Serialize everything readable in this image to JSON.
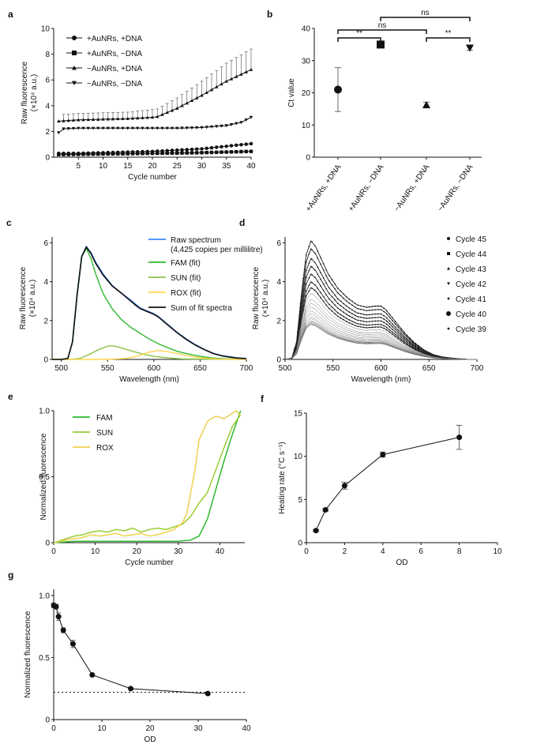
{
  "chart_data": [
    {
      "panel": "a",
      "type": "line",
      "xlabel": "Cycle number",
      "ylabel": "Raw fluorescence",
      "ylabel2": "(×10⁴ a.u.)",
      "xlim": [
        0,
        40
      ],
      "ylim": [
        0,
        10
      ],
      "xticks": [
        "5",
        "10",
        "15",
        "20",
        "25",
        "30",
        "35",
        "40"
      ],
      "yticks": [
        "0",
        "2",
        "4",
        "6",
        "8",
        "10"
      ],
      "legend_position": "top-left",
      "series": [
        {
          "name": "+AuNRs, +DNA",
          "marker": "circle",
          "x": [
            1,
            5,
            10,
            15,
            20,
            25,
            30,
            35,
            40
          ],
          "y": [
            0.3,
            0.3,
            0.35,
            0.4,
            0.45,
            0.55,
            0.65,
            0.85,
            1.05
          ]
        },
        {
          "name": "+AuNRs, −DNA",
          "marker": "square",
          "x": [
            1,
            5,
            10,
            15,
            20,
            25,
            30,
            35,
            40
          ],
          "y": [
            0.2,
            0.22,
            0.25,
            0.27,
            0.3,
            0.32,
            0.35,
            0.4,
            0.45
          ]
        },
        {
          "name": "−AuNRs, +DNA",
          "marker": "triangle-up",
          "x": [
            1,
            5,
            10,
            15,
            20,
            21,
            25,
            30,
            35,
            40
          ],
          "y": [
            2.8,
            2.9,
            2.95,
            3.0,
            3.1,
            3.15,
            3.8,
            4.8,
            5.9,
            6.8
          ],
          "err": [
            0.5,
            0.5,
            0.5,
            0.5,
            0.6,
            0.6,
            0.8,
            1.1,
            1.4,
            1.6
          ]
        },
        {
          "name": "−AuNRs, −DNA",
          "marker": "triangle-down",
          "x": [
            1,
            2,
            5,
            10,
            15,
            20,
            25,
            30,
            35,
            38,
            40
          ],
          "y": [
            1.9,
            2.2,
            2.25,
            2.25,
            2.25,
            2.25,
            2.25,
            2.3,
            2.45,
            2.7,
            3.1
          ]
        }
      ]
    },
    {
      "panel": "b",
      "type": "scatter",
      "ylabel": "Ct value",
      "ylim": [
        0,
        40
      ],
      "yticks": [
        "0",
        "10",
        "20",
        "30",
        "40"
      ],
      "categories": [
        "+AuNRs, +DNA",
        "+AuNRs, −DNA",
        "−AuNRs, +DNA",
        "−AuNRs, −DNA"
      ],
      "values": [
        21,
        35,
        16.2,
        34
      ],
      "err": [
        6.8,
        0,
        0.9,
        0.8
      ],
      "markers": [
        "circle",
        "square",
        "triangle-up",
        "triangle-down"
      ],
      "annotations": [
        {
          "text": "ns",
          "from": 0,
          "to": 2
        },
        {
          "text": "ns",
          "from": 1,
          "to": 3
        },
        {
          "text": "**",
          "from": 0,
          "to": 1
        },
        {
          "text": "**",
          "from": 2,
          "to": 3
        }
      ]
    },
    {
      "panel": "c",
      "type": "line",
      "xlabel": "Wavelength (nm)",
      "ylabel": "Raw fluorescence",
      "ylabel2": "(×10⁴ a.u.)",
      "xlim": [
        490,
        700
      ],
      "ylim": [
        0,
        6.3
      ],
      "xticks": [
        "500",
        "550",
        "600",
        "650",
        "700"
      ],
      "yticks": [
        "0",
        "2",
        "4",
        "6"
      ],
      "legend_position": "top-right",
      "series": [
        {
          "name": "Raw spectrum",
          "name2": "(4,425 copies per millilitre)",
          "color": "#3a86ff",
          "x": [
            490,
            500,
            507,
            512,
            517,
            522,
            527,
            532,
            537,
            545,
            555,
            565,
            575,
            580,
            585,
            590,
            595,
            600,
            605,
            615,
            625,
            635,
            645,
            655,
            665,
            675,
            690,
            700
          ],
          "y": [
            0,
            0,
            0.05,
            0.9,
            3.3,
            5.3,
            5.8,
            5.5,
            5.0,
            4.4,
            3.8,
            3.4,
            3.05,
            2.85,
            2.65,
            2.55,
            2.45,
            2.35,
            2.2,
            1.8,
            1.4,
            1.05,
            0.75,
            0.5,
            0.3,
            0.18,
            0.08,
            0.05
          ]
        },
        {
          "name": "FAM (fit)",
          "color": "#2eb82e",
          "x": [
            490,
            500,
            507,
            512,
            517,
            522,
            527,
            532,
            537,
            545,
            555,
            565,
            575,
            585,
            595,
            605,
            615,
            625,
            635,
            645,
            655,
            665,
            675,
            690,
            700
          ],
          "y": [
            0,
            0,
            0.05,
            0.9,
            3.3,
            5.3,
            5.7,
            5.2,
            4.4,
            3.4,
            2.6,
            2.05,
            1.65,
            1.35,
            1.05,
            0.8,
            0.6,
            0.42,
            0.3,
            0.2,
            0.12,
            0.07,
            0.04,
            0.02,
            0.01
          ]
        },
        {
          "name": "SUN (fit)",
          "color": "#8bc34a",
          "x": [
            490,
            510,
            520,
            530,
            540,
            550,
            555,
            560,
            570,
            580,
            590,
            600,
            610,
            620,
            630,
            640,
            660,
            700
          ],
          "y": [
            0,
            0,
            0.05,
            0.25,
            0.5,
            0.68,
            0.7,
            0.66,
            0.52,
            0.38,
            0.25,
            0.16,
            0.1,
            0.06,
            0.03,
            0.02,
            0.01,
            0
          ]
        },
        {
          "name": "ROX (fit)",
          "color": "#ffd54f",
          "x": [
            490,
            550,
            570,
            585,
            595,
            605,
            615,
            625,
            635,
            645,
            655,
            670,
            700
          ],
          "y": [
            0,
            0,
            0.05,
            0.2,
            0.38,
            0.46,
            0.4,
            0.3,
            0.2,
            0.12,
            0.06,
            0.02,
            0
          ]
        },
        {
          "name": "Sum of fit spectra",
          "color": "#111111",
          "x": [
            490,
            500,
            507,
            512,
            517,
            522,
            527,
            532,
            537,
            545,
            555,
            565,
            575,
            580,
            585,
            590,
            595,
            600,
            605,
            615,
            625,
            635,
            645,
            655,
            665,
            675,
            690,
            700
          ],
          "y": [
            0,
            0,
            0.05,
            0.9,
            3.3,
            5.3,
            5.78,
            5.45,
            4.95,
            4.35,
            3.78,
            3.4,
            3.0,
            2.8,
            2.62,
            2.52,
            2.42,
            2.32,
            2.18,
            1.78,
            1.38,
            1.03,
            0.73,
            0.49,
            0.29,
            0.17,
            0.07,
            0.04
          ]
        }
      ]
    },
    {
      "panel": "d",
      "type": "line",
      "xlabel": "Wavelength (nm)",
      "ylabel": "Raw fluorescence",
      "ylabel2": "(×10⁴ a.u.)",
      "xlim": [
        500,
        700
      ],
      "ylim": [
        0,
        6.3
      ],
      "xticks": [
        "500",
        "550",
        "600",
        "650",
        "700"
      ],
      "yticks": [
        "0",
        "2",
        "4",
        "6"
      ],
      "legend_position": "top-right",
      "legend": [
        "Cycle 45",
        "Cycle 44",
        "Cycle 43",
        "Cycle 42",
        "Cycle 41",
        "Cycle 40",
        "Cycle 39"
      ],
      "peaks": [
        6.1,
        5.7,
        5.2,
        4.8,
        4.4,
        4.0,
        3.7,
        3.4,
        3.1,
        2.9,
        2.7,
        2.5,
        2.35,
        2.2,
        2.1,
        2.0,
        1.95,
        1.9,
        1.85,
        1.82,
        1.8
      ]
    },
    {
      "panel": "e",
      "type": "line",
      "xlabel": "Cycle number",
      "ylabel": "Normalized fluorescence",
      "xlim": [
        0,
        46
      ],
      "ylim": [
        0,
        1.0
      ],
      "xticks": [
        "0",
        "10",
        "20",
        "30",
        "40"
      ],
      "yticks": [
        "0",
        "0.5",
        "1.0"
      ],
      "legend_position": "top-left",
      "series": [
        {
          "name": "FAM",
          "color": "#2eb82e",
          "x": [
            0,
            5,
            10,
            15,
            20,
            25,
            30,
            33,
            35,
            37,
            39,
            41,
            43,
            45
          ],
          "y": [
            0,
            0.01,
            0.01,
            0.01,
            0.01,
            0.01,
            0.01,
            0.02,
            0.05,
            0.18,
            0.4,
            0.62,
            0.82,
            1.0
          ]
        },
        {
          "name": "SUN",
          "color": "#9acd32",
          "x": [
            0,
            3,
            5,
            7,
            9,
            11,
            13,
            15,
            17,
            19,
            21,
            23,
            25,
            27,
            29,
            31,
            33,
            35,
            37,
            39,
            41,
            43,
            45
          ],
          "y": [
            0,
            0.03,
            0.05,
            0.06,
            0.08,
            0.09,
            0.08,
            0.1,
            0.09,
            0.11,
            0.08,
            0.1,
            0.11,
            0.1,
            0.12,
            0.14,
            0.2,
            0.3,
            0.38,
            0.55,
            0.72,
            0.88,
            0.97
          ]
        },
        {
          "name": "ROX",
          "color": "#f0d050",
          "x": [
            0,
            3,
            5,
            7,
            9,
            11,
            13,
            15,
            17,
            19,
            21,
            23,
            25,
            27,
            29,
            31,
            32,
            33,
            34,
            35,
            37,
            39,
            41,
            43,
            44,
            45
          ],
          "y": [
            0,
            0.02,
            0.03,
            0.04,
            0.06,
            0.05,
            0.06,
            0.07,
            0.05,
            0.06,
            0.07,
            0.05,
            0.06,
            0.08,
            0.1,
            0.15,
            0.22,
            0.38,
            0.55,
            0.78,
            0.92,
            0.96,
            0.94,
            0.98,
            1.0,
            0.96
          ]
        }
      ]
    },
    {
      "panel": "f",
      "type": "line",
      "xlabel": "OD",
      "ylabel": "Heating rate (°C s⁻¹)",
      "xlim": [
        0,
        10
      ],
      "ylim": [
        0,
        15
      ],
      "xticks": [
        "0",
        "2",
        "4",
        "6",
        "8",
        "10"
      ],
      "yticks": [
        "0",
        "5",
        "10",
        "15"
      ],
      "series": [
        {
          "name": "",
          "x": [
            0.5,
            1,
            2,
            4,
            8
          ],
          "y": [
            1.4,
            3.8,
            6.6,
            10.2,
            12.2
          ],
          "err": [
            0.1,
            0.15,
            0.4,
            0.3,
            1.4
          ]
        }
      ]
    },
    {
      "panel": "g",
      "type": "line",
      "xlabel": "OD",
      "ylabel": "Normalized fluorescence",
      "xlim": [
        0,
        40
      ],
      "ylim": [
        0,
        1.05
      ],
      "xticks": [
        "0",
        "10",
        "20",
        "30",
        "40"
      ],
      "yticks": [
        "0",
        "0.5",
        "1.0"
      ],
      "series": [
        {
          "name": "",
          "x": [
            0,
            0.5,
            1,
            2,
            4,
            8,
            16,
            32
          ],
          "y": [
            0.92,
            0.91,
            0.83,
            0.72,
            0.61,
            0.36,
            0.25,
            0.21
          ],
          "err": [
            0.02,
            0.02,
            0.03,
            0.02,
            0.03,
            0.01,
            0.01,
            0.01
          ]
        }
      ],
      "reference_line": 0.22
    }
  ]
}
